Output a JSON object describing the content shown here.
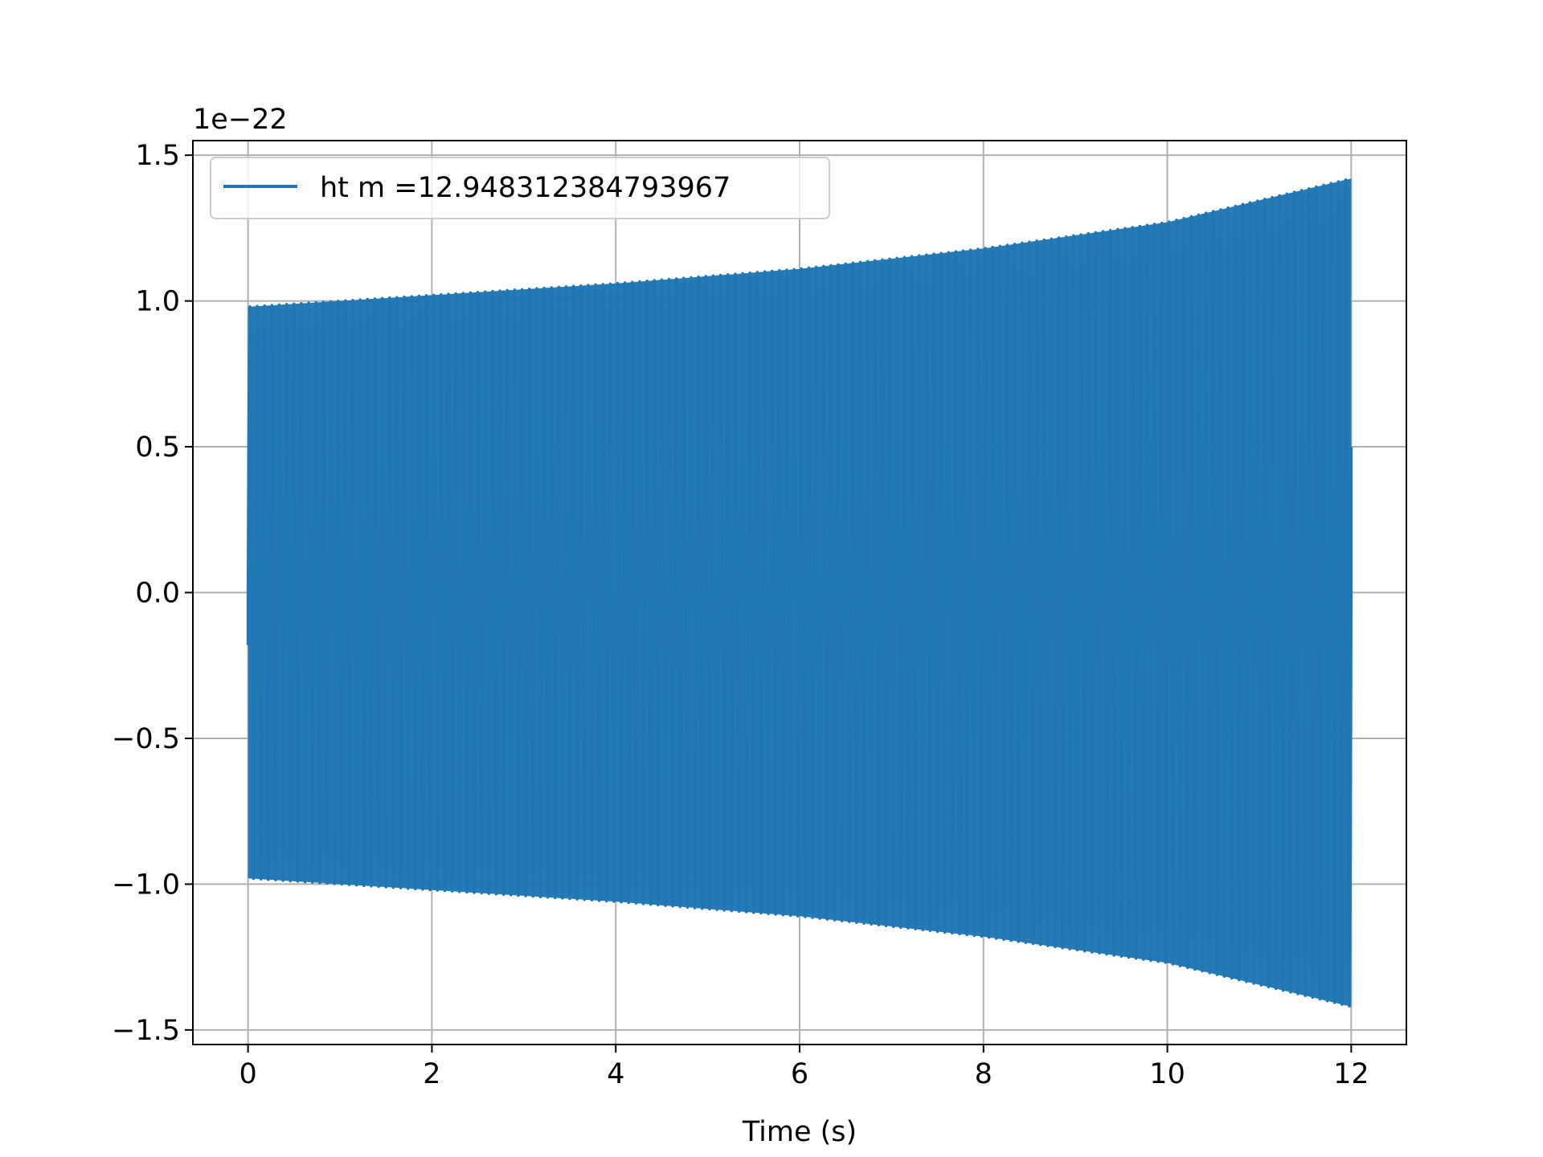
{
  "chart_data": {
    "type": "line",
    "title": "",
    "xlabel": "Time (s)",
    "ylabel": "",
    "y_offset_label": "1e−22",
    "y_scale_factor": 1e-22,
    "xlim": [
      -0.6,
      12.6
    ],
    "ylim": [
      -1.55,
      1.55
    ],
    "x_ticks": [
      0,
      2,
      4,
      6,
      8,
      10,
      12
    ],
    "x_tick_labels": [
      "0",
      "2",
      "4",
      "6",
      "8",
      "10",
      "12"
    ],
    "y_ticks": [
      -1.5,
      -1.0,
      -0.5,
      0.0,
      0.5,
      1.0,
      1.5
    ],
    "y_tick_labels": [
      "−1.5",
      "−1.0",
      "−0.5",
      "0.0",
      "0.5",
      "1.0",
      "1.5"
    ],
    "grid": true,
    "legend": {
      "position": "upper-left"
    },
    "series": [
      {
        "name": "ht m =12.948312384793967",
        "color": "#1f77b4",
        "waveform": {
          "t_start": 0.0,
          "t_end": 12.0,
          "cycles_per_second": 12.5,
          "amplitude_envelope": [
            [
              0.0,
              0.98
            ],
            [
              2.0,
              1.02
            ],
            [
              4.0,
              1.06
            ],
            [
              6.0,
              1.11
            ],
            [
              8.0,
              1.18
            ],
            [
              10.0,
              1.27
            ],
            [
              12.0,
              1.42
            ]
          ],
          "start_value": -0.18,
          "end_value": 0.5
        }
      }
    ]
  }
}
